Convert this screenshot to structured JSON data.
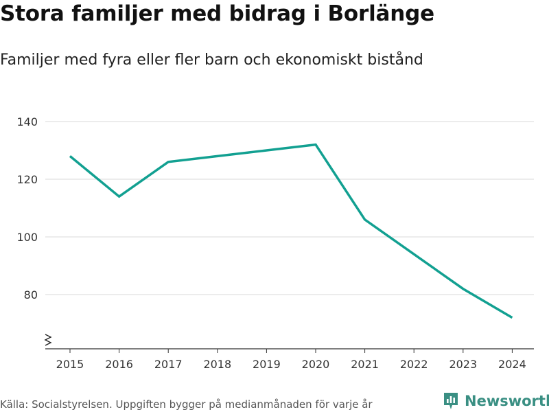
{
  "title": "Stora familjer med bidrag i Borlänge",
  "subtitle": "Familjer med fyra eller fler barn och ekonomiskt bistånd",
  "source": "Källa: Socialstyrelsen. Uppgiften bygger på medianmånaden för varje år",
  "brand": "Newsworthy",
  "colors": {
    "line": "#12a091",
    "grid": "#d9d9d9",
    "axis": "#333333",
    "brand": "#3a8f83"
  },
  "chart_data": {
    "type": "line",
    "title": "Stora familjer med bidrag i Borlänge",
    "subtitle": "Familjer med fyra eller fler barn och ekonomiskt bistånd",
    "xlabel": "",
    "ylabel": "",
    "x": [
      "2015",
      "2016",
      "2017",
      "2018",
      "2019",
      "2020",
      "2021",
      "2022",
      "2023",
      "2024"
    ],
    "series": [
      {
        "name": "Familjer",
        "values": [
          128,
          114,
          126,
          128,
          130,
          132,
          106,
          94,
          82,
          72
        ]
      }
    ],
    "yticks": [
      80,
      100,
      120,
      140
    ],
    "ylim": [
      60,
      140
    ],
    "axis_break": true,
    "grid": true
  }
}
